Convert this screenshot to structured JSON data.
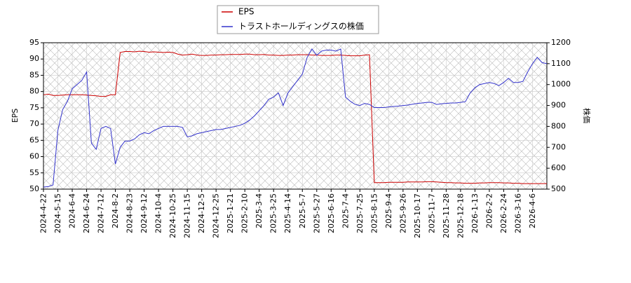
{
  "chart_data": {
    "type": "line",
    "legend_position": "upper center",
    "grid": true,
    "y_label": "EPS",
    "y2_label": "株価",
    "categories": [
      "2024-4-22",
      null,
      null,
      "2024-5-15",
      null,
      null,
      "2024-6-4",
      null,
      null,
      "2024-6-24",
      null,
      null,
      "2024-7-12",
      null,
      null,
      "2024-8-2",
      null,
      null,
      "2024-8-23",
      null,
      null,
      "2024-9-12",
      null,
      null,
      "2024-10-4",
      null,
      null,
      "2024-10-25",
      null,
      null,
      "2024-11-15",
      null,
      null,
      "2024-12-5",
      null,
      null,
      "2024-12-25",
      null,
      null,
      "2025-1-21",
      null,
      null,
      "2025-2-10",
      null,
      null,
      "2025-3-4",
      null,
      null,
      "2025-3-25",
      null,
      null,
      "2025-4-14",
      null,
      null,
      "2025-5-7",
      null,
      null,
      "2025-5-27",
      null,
      null,
      "2025-6-16",
      null,
      null,
      "2025-7-4",
      null,
      null,
      "2025-7-25",
      null,
      null,
      "2025-8-15",
      null,
      null,
      "2025-9-4",
      null,
      null,
      "2025-9-26",
      null,
      null,
      "2025-10-17",
      null,
      null,
      "2025-11-7",
      null,
      null,
      "2025-11-28",
      null,
      null,
      "2025-12-18",
      null,
      null,
      "2026-1-13",
      null,
      null,
      "2026-2-2",
      null,
      null,
      "2026-2-24",
      null,
      null,
      "2026-3-16",
      null,
      null,
      "2026-4-6",
      null,
      null,
      null
    ],
    "ylim": [
      50,
      95
    ],
    "yticks": [
      50,
      55,
      60,
      65,
      70,
      75,
      80,
      85,
      90,
      95
    ],
    "y2lim": [
      500,
      1200
    ],
    "y2ticks": [
      500,
      600,
      700,
      800,
      900,
      1000,
      1100,
      1200
    ],
    "series": [
      {
        "name": "EPS",
        "color": "#cc0000",
        "values": [
          79,
          79.2,
          78.8,
          78.8,
          78.9,
          79,
          79,
          79,
          79,
          78.9,
          78.8,
          78.7,
          78.5,
          78.5,
          79,
          79,
          92,
          92.3,
          92.3,
          92.2,
          92.4,
          92.3,
          92.1,
          92.2,
          92.1,
          92,
          92.1,
          92,
          91.5,
          91.2,
          91.3,
          91.5,
          91.2,
          91.1,
          91.1,
          91.2,
          91.2,
          91.3,
          91.3,
          91.4,
          91.4,
          91.4,
          91.5,
          91.5,
          91.3,
          91.3,
          91.4,
          91.2,
          91.2,
          91.1,
          91.1,
          91.2,
          91.2,
          91.3,
          91.3,
          91.3,
          91.2,
          91.2,
          91.1,
          91.1,
          91.1,
          91.2,
          91.2,
          91.1,
          91.0,
          91.0,
          91.0,
          91.2,
          91.3,
          52,
          52,
          52,
          52.1,
          52.1,
          52.1,
          52.1,
          52.2,
          52.2,
          52.2,
          52.2,
          52.3,
          52.3,
          52.2,
          52.1,
          52,
          52,
          51.9,
          51.9,
          51.8,
          51.8,
          51.8,
          51.9,
          51.9,
          52,
          52,
          52,
          51.9,
          51.9,
          51.8,
          51.8,
          51.7,
          51.7,
          51.7,
          51.7,
          51.7,
          51.7
        ]
      },
      {
        "name": "トラストホールディングスの株価",
        "color": "#3333cc",
        "axis": "y2",
        "values": [
          510,
          512,
          520,
          780,
          880,
          920,
          980,
          1000,
          1020,
          1060,
          720,
          690,
          790,
          800,
          790,
          620,
          700,
          730,
          730,
          740,
          760,
          770,
          765,
          780,
          790,
          800,
          800,
          800,
          800,
          795,
          750,
          755,
          765,
          770,
          775,
          780,
          785,
          785,
          790,
          795,
          800,
          805,
          815,
          830,
          850,
          875,
          900,
          930,
          940,
          960,
          900,
          960,
          990,
          1020,
          1050,
          1130,
          1170,
          1140,
          1160,
          1165,
          1165,
          1160,
          1170,
          940,
          920,
          905,
          900,
          910,
          905,
          890,
          890,
          890,
          893,
          895,
          897,
          900,
          902,
          906,
          910,
          912,
          915,
          915,
          905,
          908,
          910,
          912,
          912,
          915,
          918,
          960,
          985,
          1000,
          1005,
          1010,
          1005,
          995,
          1010,
          1030,
          1010,
          1010,
          1015,
          1060,
          1100,
          1130,
          1105,
          1100
        ]
      }
    ]
  }
}
